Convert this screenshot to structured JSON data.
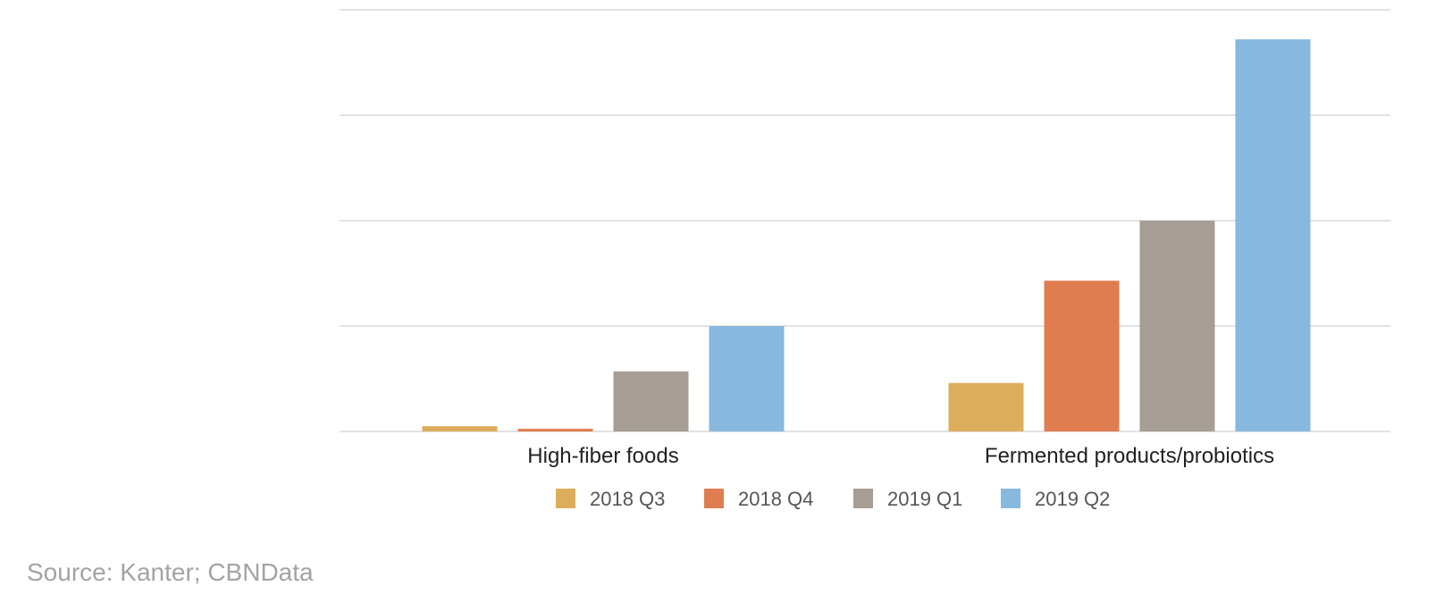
{
  "chart_data": {
    "type": "bar",
    "title": "",
    "xlabel": "",
    "ylabel": "",
    "categories": [
      "High-fiber foods",
      "Fermented products/probiotics"
    ],
    "series": [
      {
        "name": "2018 Q3",
        "color": "#dcae5c",
        "values": [
          0.05,
          0.46
        ]
      },
      {
        "name": "2018 Q4",
        "color": "#e07d50",
        "values": [
          0.025,
          1.43
        ]
      },
      {
        "name": "2019 Q1",
        "color": "#a69e94",
        "values": [
          0.57,
          2.0
        ]
      },
      {
        "name": "2019 Q2",
        "color": "#86b8e0",
        "values": [
          1.0,
          3.72
        ]
      }
    ],
    "ylim": [
      0,
      4
    ],
    "yticks_shown": false,
    "grid": true,
    "legend": "bottom-center"
  },
  "source": "Source: Kanter; CBNData"
}
